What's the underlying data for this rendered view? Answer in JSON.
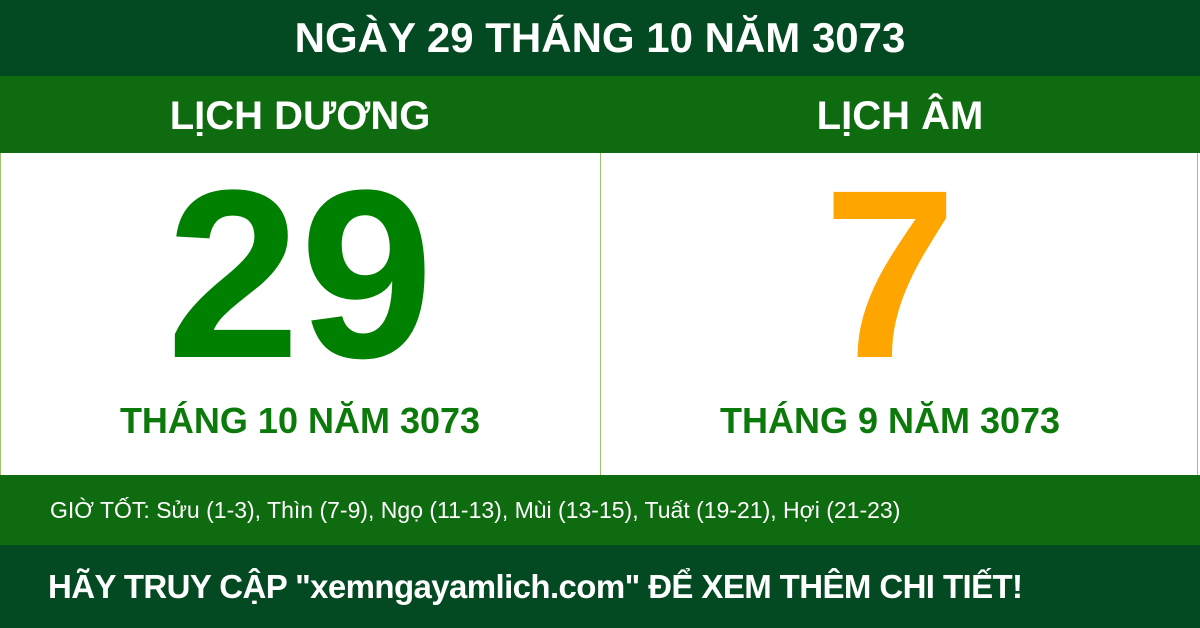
{
  "title": "NGÀY 29 THÁNG 10 NĂM 3073",
  "solar": {
    "heading": "LỊCH DƯƠNG",
    "day": "29",
    "month_year": "THÁNG 10 NĂM 3073"
  },
  "lunar": {
    "heading": "LỊCH ÂM",
    "day": "7",
    "month_year": "THÁNG 9 NĂM 3073"
  },
  "good_hours": "GIỜ TỐT: Sửu (1-3), Thìn (7-9), Ngọ (11-13), Mùi (13-15), Tuất (19-21), Hợi (21-23)",
  "footer": "HÃY TRUY CẬP \"xemngayamlich.com\" ĐỂ XEM THÊM CHI TIẾT!",
  "colors": {
    "dark_green": "#034a22",
    "green": "#0f6b10",
    "solar_day": "#008000",
    "lunar_day": "#ffa500"
  }
}
